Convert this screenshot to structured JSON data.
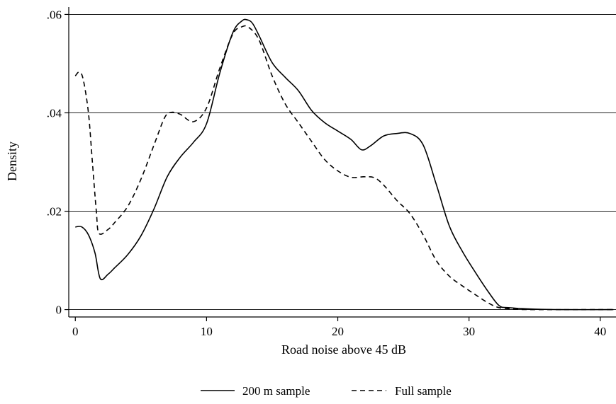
{
  "chart_data": {
    "type": "line",
    "xlabel": "Road noise above 45 dB",
    "ylabel": "Density",
    "xlim": [
      -0.5,
      41.2
    ],
    "ylim": [
      -0.0015,
      0.0615
    ],
    "x_ticks": [
      0,
      10,
      20,
      30,
      40
    ],
    "x_tick_labels": [
      "0",
      "10",
      "20",
      "30",
      "40"
    ],
    "y_ticks": [
      0,
      0.02,
      0.04,
      0.06
    ],
    "y_tick_labels": [
      "0",
      ".02",
      ".04",
      ".06"
    ],
    "grid": "horizontal",
    "legend_position": "bottom",
    "series": [
      {
        "name": "200 m sample",
        "style": "solid",
        "color": "#000000",
        "points": [
          [
            0,
            0.0168
          ],
          [
            0.5,
            0.0168
          ],
          [
            1,
            0.0152
          ],
          [
            1.5,
            0.0115
          ],
          [
            1.9,
            0.0063
          ],
          [
            2.5,
            0.0072
          ],
          [
            3,
            0.0085
          ],
          [
            4,
            0.0112
          ],
          [
            5,
            0.015
          ],
          [
            6,
            0.0205
          ],
          [
            7,
            0.027
          ],
          [
            8,
            0.031
          ],
          [
            9,
            0.034
          ],
          [
            10,
            0.0378
          ],
          [
            11,
            0.048
          ],
          [
            12,
            0.0563
          ],
          [
            12.7,
            0.0587
          ],
          [
            13.1,
            0.0589
          ],
          [
            13.5,
            0.0582
          ],
          [
            14,
            0.0557
          ],
          [
            15,
            0.0502
          ],
          [
            16,
            0.0472
          ],
          [
            17,
            0.0445
          ],
          [
            18,
            0.0405
          ],
          [
            19,
            0.038
          ],
          [
            20,
            0.0363
          ],
          [
            21,
            0.0346
          ],
          [
            21.8,
            0.0325
          ],
          [
            22.5,
            0.0333
          ],
          [
            23.5,
            0.0353
          ],
          [
            24.5,
            0.0358
          ],
          [
            25.5,
            0.0358
          ],
          [
            26.5,
            0.0335
          ],
          [
            27.5,
            0.0255
          ],
          [
            28.5,
            0.017
          ],
          [
            29.5,
            0.0118
          ],
          [
            30.5,
            0.0075
          ],
          [
            31.5,
            0.0035
          ],
          [
            32.3,
            0.0008
          ],
          [
            33,
            0.0004
          ],
          [
            35,
            0.0001
          ],
          [
            37,
            0
          ],
          [
            41,
            0
          ]
        ]
      },
      {
        "name": "Full sample",
        "style": "dashed",
        "color": "#000000",
        "points": [
          [
            0,
            0.0475
          ],
          [
            0.3,
            0.0483
          ],
          [
            0.6,
            0.0468
          ],
          [
            1,
            0.04
          ],
          [
            1.3,
            0.03
          ],
          [
            1.6,
            0.02
          ],
          [
            1.8,
            0.0155
          ],
          [
            2.5,
            0.0163
          ],
          [
            3,
            0.0177
          ],
          [
            4,
            0.021
          ],
          [
            5,
            0.0265
          ],
          [
            6,
            0.0335
          ],
          [
            6.8,
            0.039
          ],
          [
            7.3,
            0.0401
          ],
          [
            8,
            0.0397
          ],
          [
            9,
            0.0382
          ],
          [
            10,
            0.041
          ],
          [
            11,
            0.049
          ],
          [
            12,
            0.056
          ],
          [
            12.7,
            0.0575
          ],
          [
            13.2,
            0.0574
          ],
          [
            14,
            0.0548
          ],
          [
            15,
            0.0475
          ],
          [
            16,
            0.0418
          ],
          [
            17,
            0.038
          ],
          [
            18,
            0.0342
          ],
          [
            19,
            0.0305
          ],
          [
            20,
            0.0282
          ],
          [
            21,
            0.0269
          ],
          [
            22,
            0.027
          ],
          [
            22.8,
            0.0268
          ],
          [
            23.5,
            0.0253
          ],
          [
            24.5,
            0.0222
          ],
          [
            25.5,
            0.0195
          ],
          [
            26.5,
            0.0152
          ],
          [
            27.5,
            0.01
          ],
          [
            28.5,
            0.0068
          ],
          [
            29.5,
            0.0048
          ],
          [
            30.5,
            0.003
          ],
          [
            31.5,
            0.0013
          ],
          [
            32.3,
            0.0004
          ],
          [
            33.5,
            0.0001
          ],
          [
            35,
            0
          ],
          [
            41,
            0
          ]
        ]
      }
    ]
  }
}
